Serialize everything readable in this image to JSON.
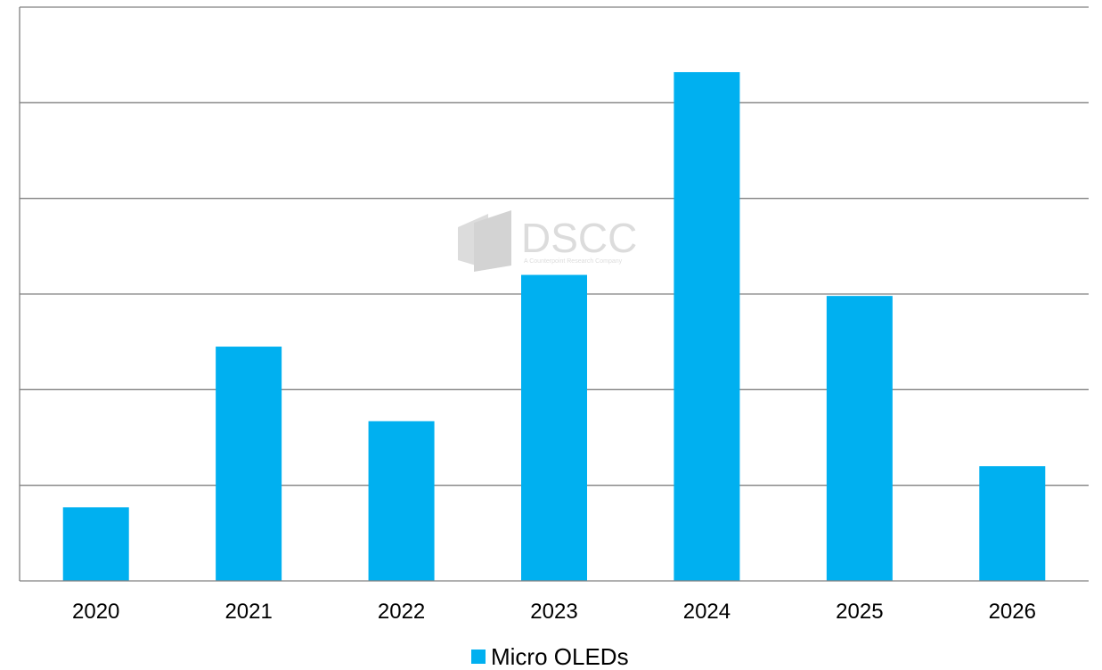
{
  "chart_data": {
    "type": "bar",
    "categories": [
      "2020",
      "2021",
      "2022",
      "2023",
      "2024",
      "2025",
      "2026"
    ],
    "series": [
      {
        "name": "Micro OLEDs",
        "values": [
          0.77,
          2.45,
          1.67,
          3.2,
          5.32,
          2.98,
          1.2
        ]
      }
    ],
    "ylim": [
      0,
      6
    ],
    "grid": true,
    "legend_position": "bottom",
    "title": "",
    "xlabel": "",
    "ylabel": ""
  },
  "colors": {
    "bar": "#00b0f0",
    "grid": "#808080",
    "watermark": "#d9d9d9"
  },
  "watermark": {
    "brand": "DSCC",
    "subtitle": "A Counterpoint Research Company"
  }
}
